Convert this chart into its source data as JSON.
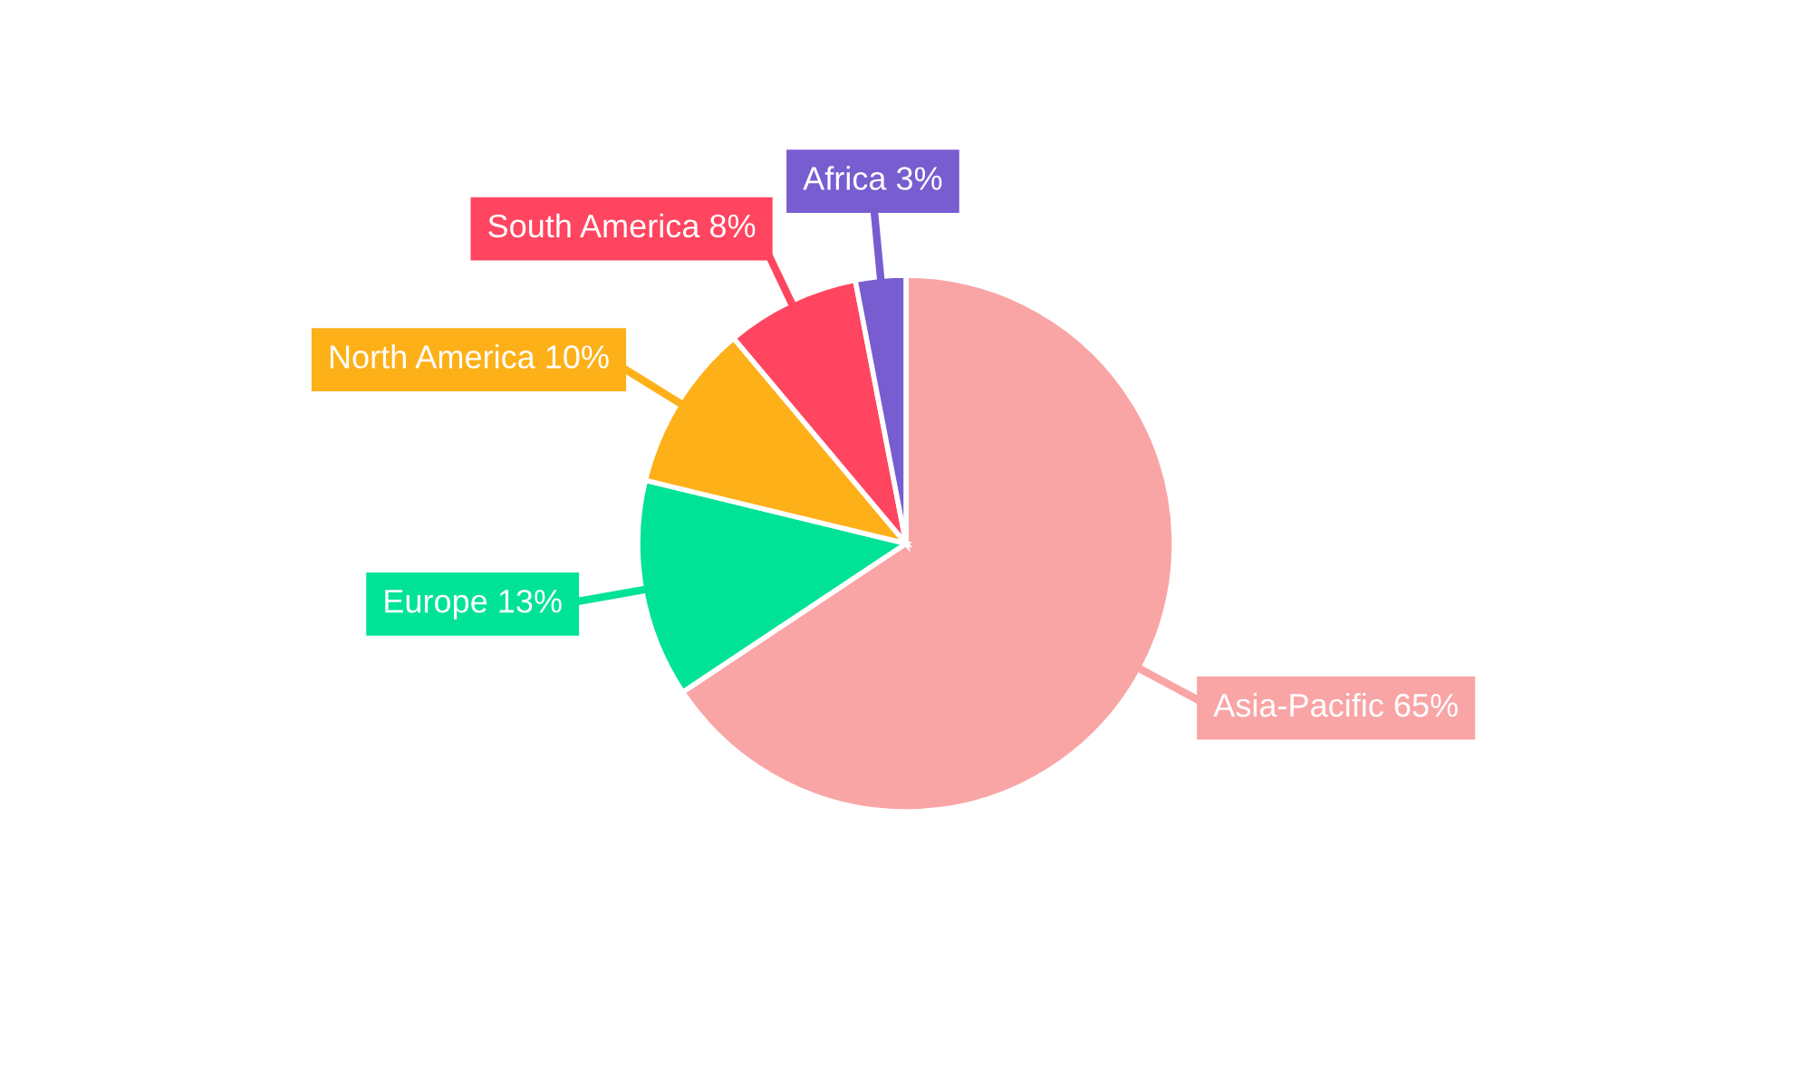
{
  "chart_data": {
    "type": "pie",
    "categories": [
      "Asia-Pacific",
      "Europe",
      "North America",
      "South America",
      "Africa"
    ],
    "values": [
      65,
      13,
      10,
      8,
      3
    ],
    "colors": [
      "#f9a5a6",
      "#00e396",
      "#feb019",
      "#ff4560",
      "#775dd0"
    ],
    "value_labels": [
      "65%",
      "13%",
      "10%",
      "8%",
      "3%"
    ],
    "legend": false
  }
}
